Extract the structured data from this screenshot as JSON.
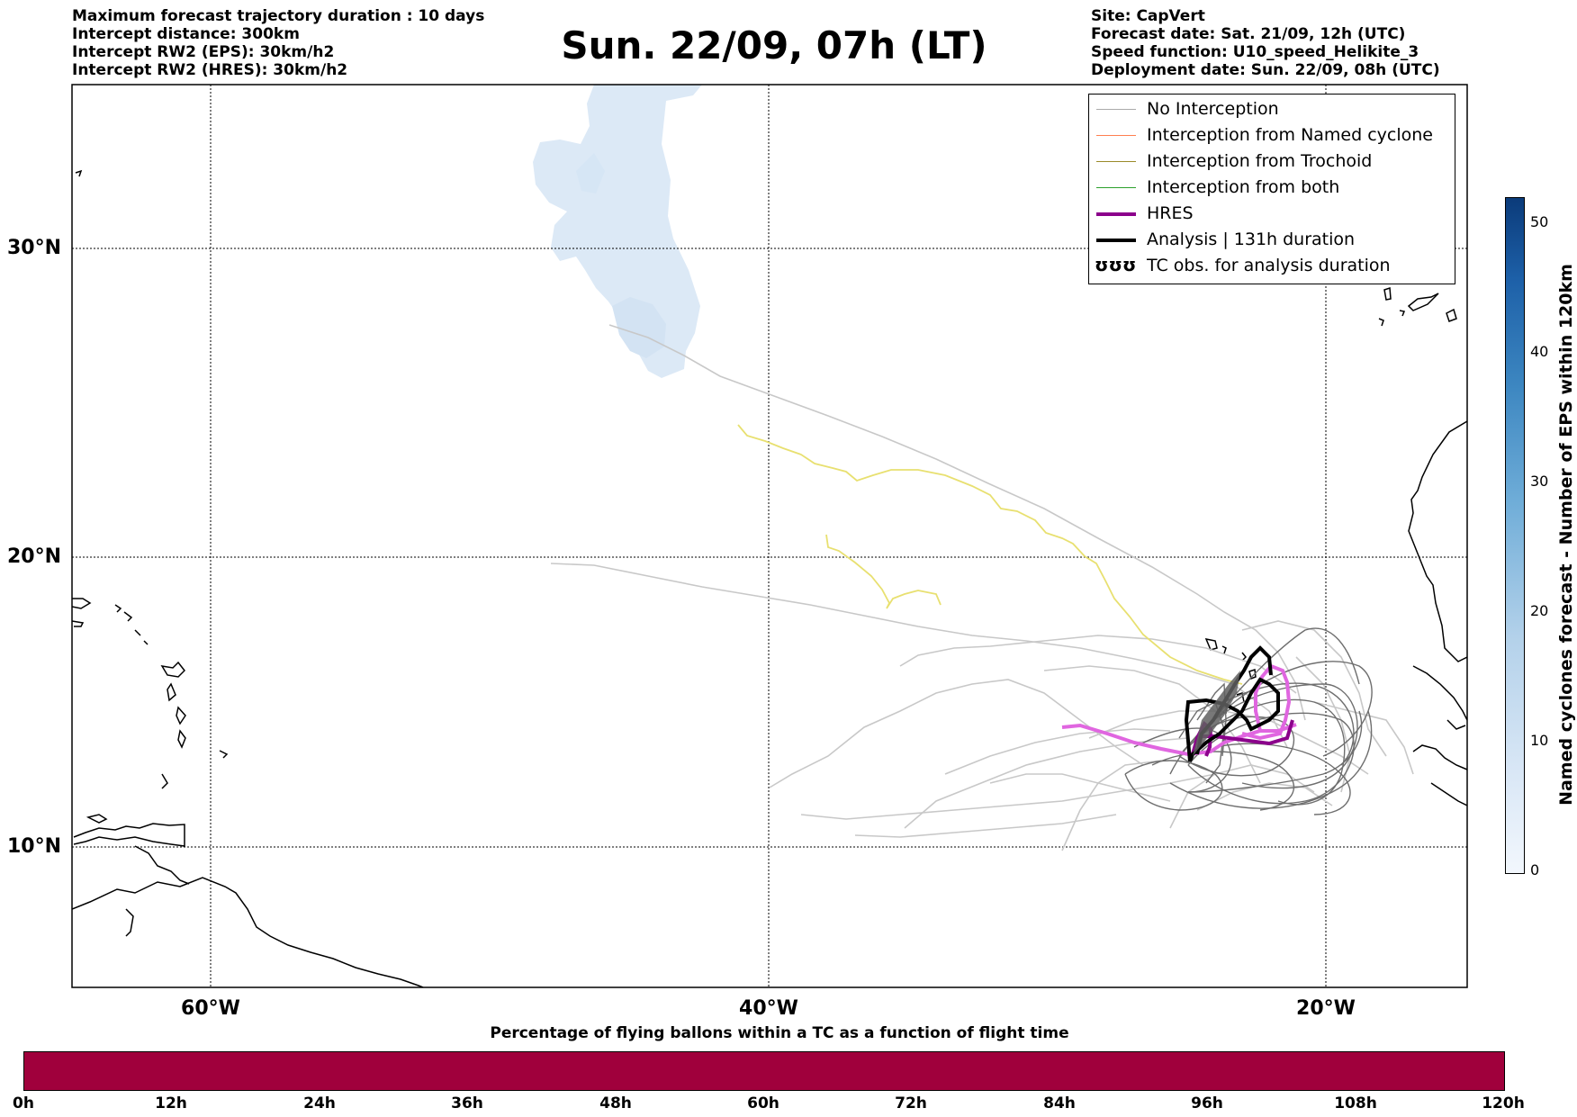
{
  "header": {
    "left_lines": [
      "Maximum forecast trajectory duration : 10 days",
      "Intercept distance: 300km",
      "Intercept RW2 (EPS):  30km/h2",
      "Intercept RW2 (HRES): 30km/h2"
    ],
    "title": "Sun. 22/09, 07h (LT)",
    "right_lines": [
      "Site: CapVert",
      "Forecast date: Sat. 21/09, 12h (UTC)",
      "Speed function: U10_speed_Helikite_3",
      "Deployment date: Sun. 22/09, 08h (UTC)"
    ]
  },
  "map": {
    "lat_labels": [
      "30°N",
      "20°N",
      "10°N"
    ],
    "lon_labels": [
      "60°W",
      "40°W",
      "20°W"
    ],
    "colors": {
      "no_interception": "#aaaaaa",
      "named_cyclone": "#ff7f50",
      "trochoid": "#9a8a2a",
      "both": "#2ca02c",
      "hres": "#8b008b",
      "hres_highlight": "#e066e0",
      "analysis": "#000000",
      "yellow_track": "#e8e070",
      "cyclone_field": "#dce9f6"
    }
  },
  "legend": {
    "items": [
      {
        "label": "No Interception",
        "color": "#aaaaaa"
      },
      {
        "label": "Interception from Named cyclone",
        "color": "#ff7f50"
      },
      {
        "label": "Interception from Trochoid",
        "color": "#9a8a2a"
      },
      {
        "label": "Interception from both",
        "color": "#2ca02c"
      },
      {
        "label": "HRES",
        "color": "#8b008b"
      },
      {
        "label": "Analysis | 131h duration",
        "color": "#000000"
      },
      {
        "label": "TC obs. for analysis duration",
        "icon": "tc-symbol-icon"
      }
    ],
    "tc_symbol": "ʊʊʊ"
  },
  "colorbar_right": {
    "label": "Named cyclones forecast - Number of EPS within 120km",
    "ticks": [
      "0",
      "10",
      "20",
      "30",
      "40",
      "50"
    ],
    "range": [
      0,
      52
    ]
  },
  "bottom_bar": {
    "title": "Percentage of flying ballons within a TC as a function of flight time",
    "ticks": [
      "0h",
      "12h",
      "24h",
      "36h",
      "48h",
      "60h",
      "72h",
      "84h",
      "96h",
      "108h",
      "120h"
    ],
    "color": "#a0003c"
  }
}
